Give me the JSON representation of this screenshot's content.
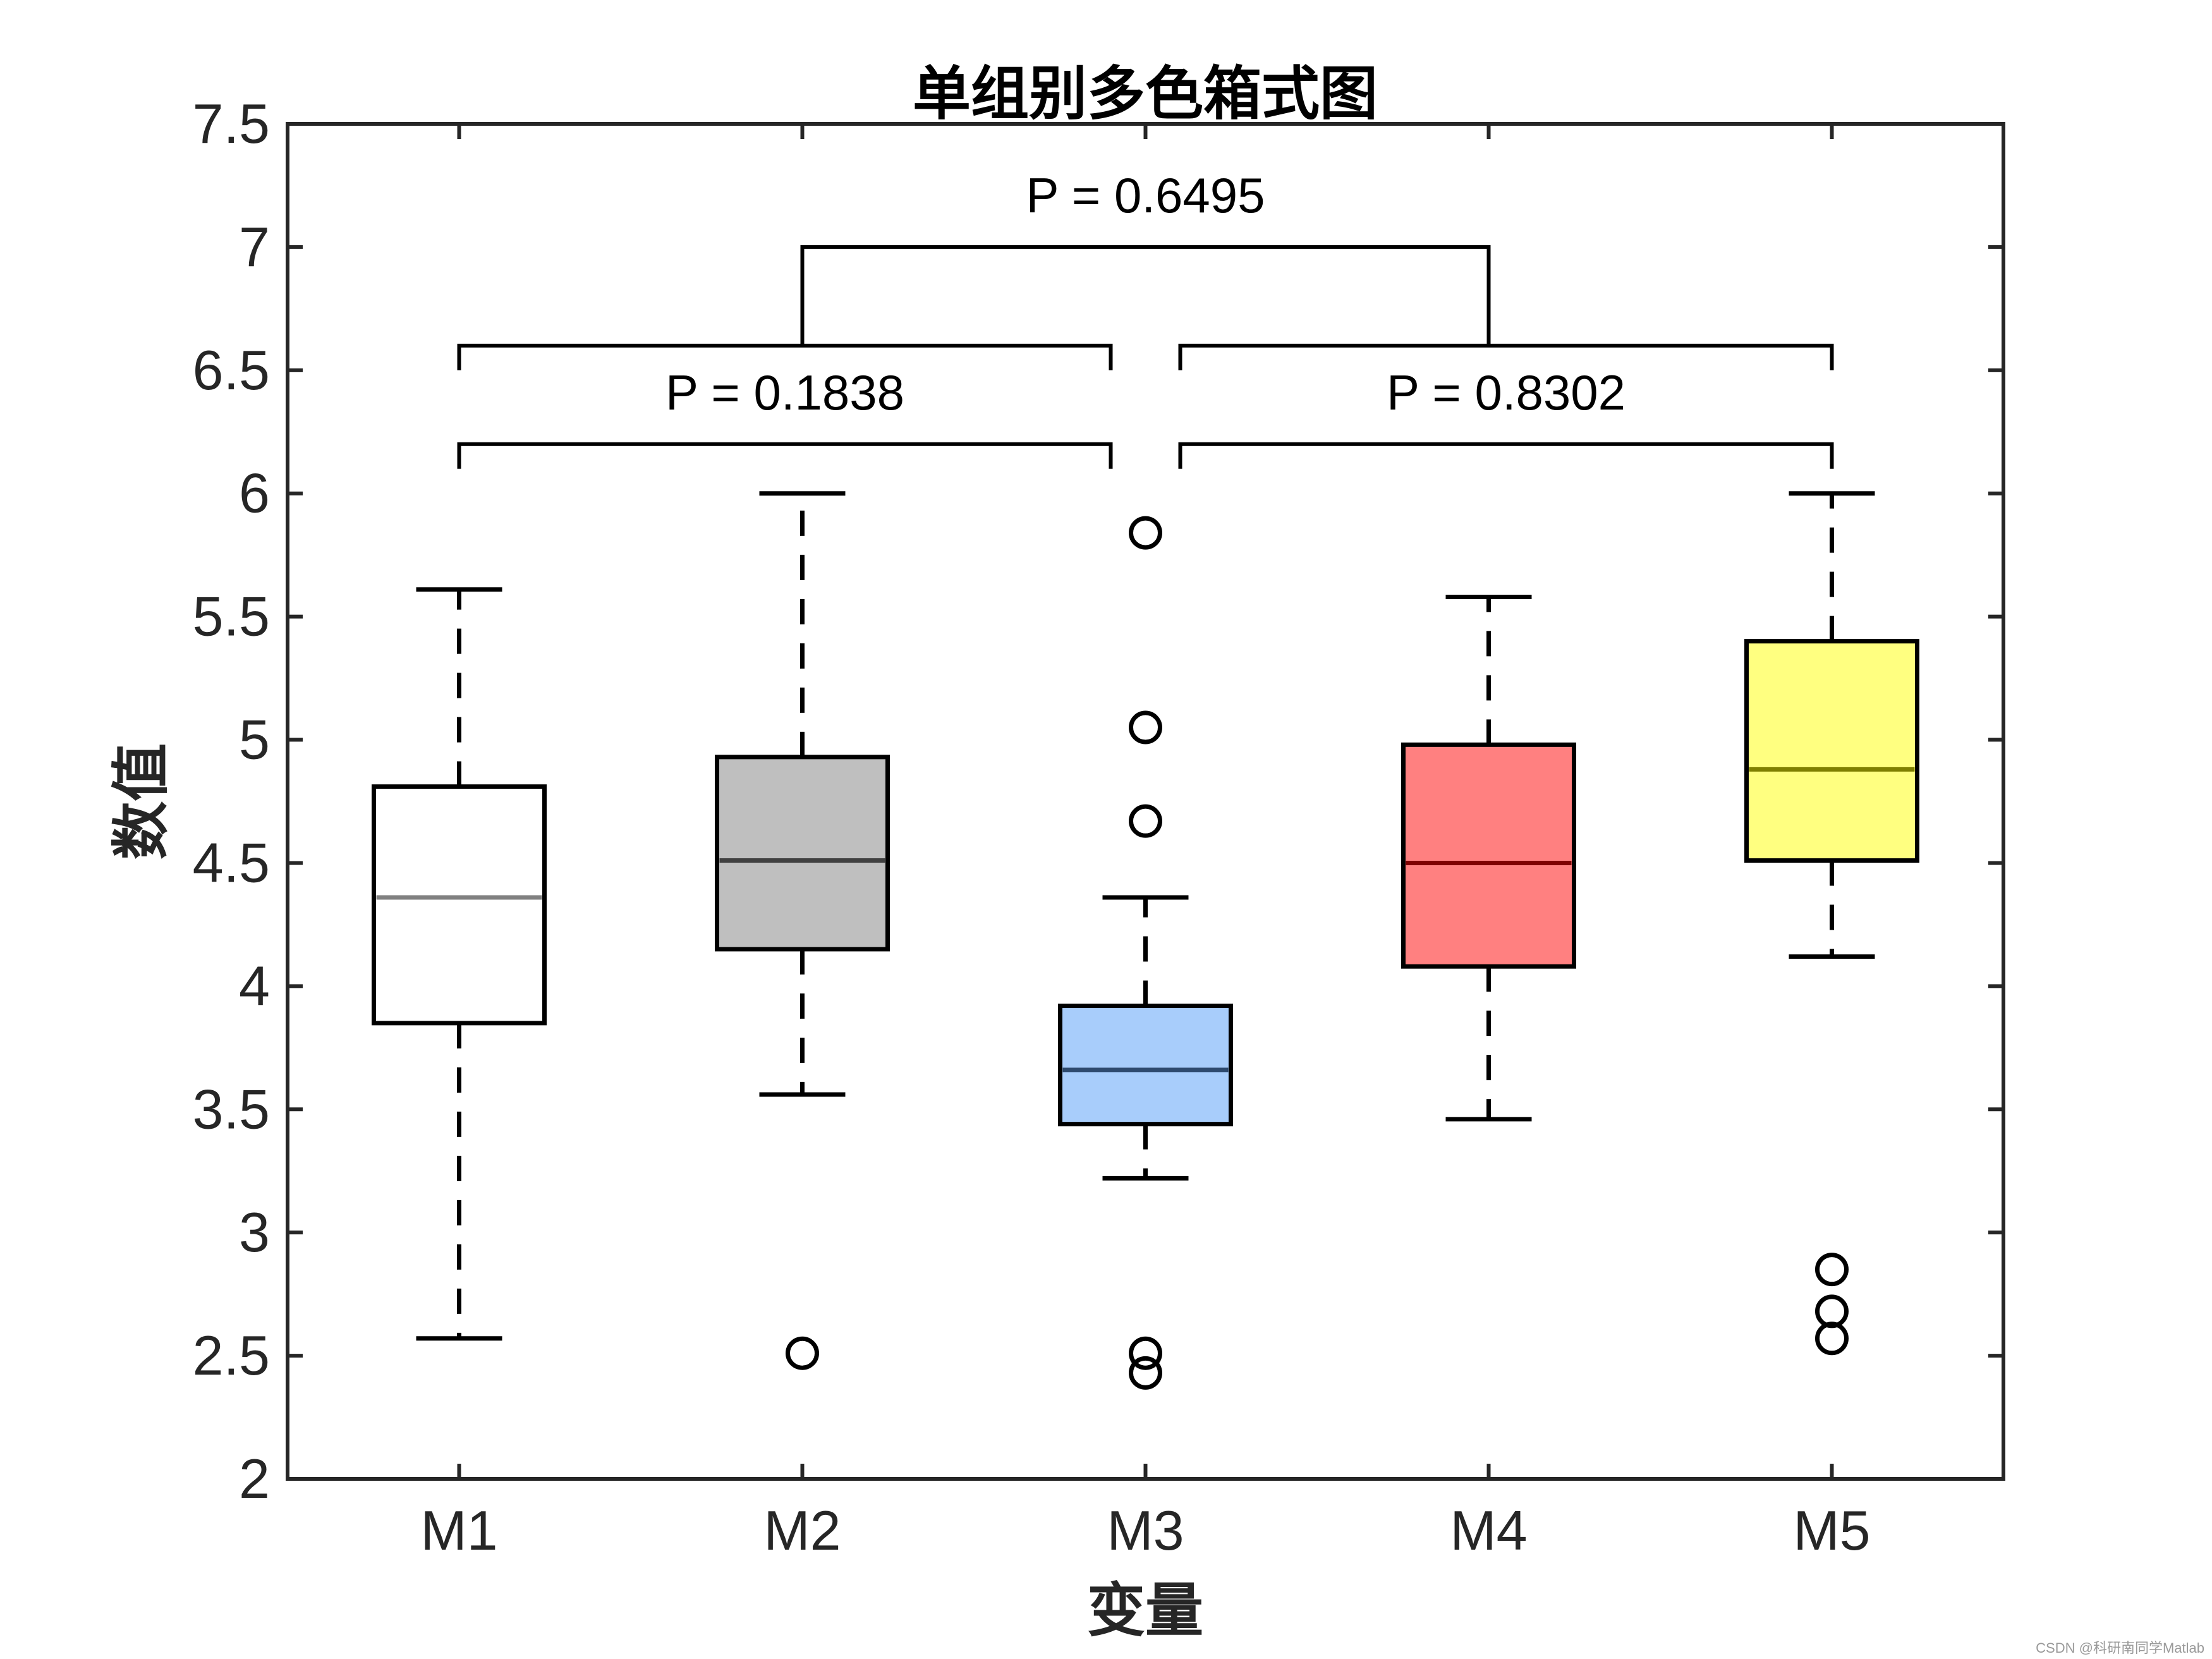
{
  "chart_data": {
    "type": "boxplot",
    "title": "单组别多色箱式图",
    "xlabel": "变量",
    "ylabel": "数值",
    "ylim": [
      2,
      7.5
    ],
    "yticks": [
      "2",
      "2.5",
      "3",
      "3.5",
      "4",
      "4.5",
      "5",
      "5.5",
      "6",
      "6.5",
      "7",
      "7.5"
    ],
    "categories": [
      "M1",
      "M2",
      "M3",
      "M4",
      "M5"
    ],
    "boxes": [
      {
        "category": "M1",
        "whisker_low": 2.57,
        "q1": 3.85,
        "median": 4.36,
        "q3": 4.81,
        "whisker_high": 5.61,
        "outliers": [],
        "fill": "#ffffff",
        "median_color": "#808080"
      },
      {
        "category": "M2",
        "whisker_low": 3.56,
        "q1": 4.15,
        "median": 4.51,
        "q3": 4.93,
        "whisker_high": 6.0,
        "outliers": [
          2.51
        ],
        "fill": "#bfbfbf",
        "median_color": "#404040"
      },
      {
        "category": "M3",
        "whisker_low": 3.22,
        "q1": 3.44,
        "median": 3.66,
        "q3": 3.92,
        "whisker_high": 4.36,
        "outliers": [
          5.84,
          5.05,
          4.67,
          2.51,
          2.43
        ],
        "fill": "#a8cdfb",
        "median_color": "#2e4a6e"
      },
      {
        "category": "M4",
        "whisker_low": 3.46,
        "q1": 4.08,
        "median": 4.5,
        "q3": 4.98,
        "whisker_high": 5.58,
        "outliers": [],
        "fill": "#ff8080",
        "median_color": "#7f0000"
      },
      {
        "category": "M5",
        "whisker_low": 4.12,
        "q1": 4.51,
        "median": 4.88,
        "q3": 5.4,
        "whisker_high": 6.0,
        "outliers": [
          2.85,
          2.68,
          2.57
        ],
        "fill": "#ffff80",
        "median_color": "#7f7f00"
      }
    ],
    "comparisons": [
      {
        "label": "P = 0.1838",
        "from": "M1",
        "to": "M3",
        "y": 6.2,
        "drop": 6.1
      },
      {
        "label": "P = 0.8302",
        "from": "M3",
        "to": "M5",
        "y": 6.2,
        "drop": 6.1
      },
      {
        "label": "P = 0.1838",
        "from": "M1",
        "to": "M3",
        "y": 6.6,
        "drop": 6.5,
        "hidden_label": true
      },
      {
        "label": "P = 0.8302",
        "from": "M3",
        "to": "M5",
        "y": 6.6,
        "drop": 6.5,
        "hidden_label": true
      },
      {
        "label": "P = 0.6495",
        "from": "M2",
        "to": "M4",
        "y": 7.0,
        "drop": 6.6
      }
    ],
    "grid": false
  },
  "watermark": "CSDN @科研南同学Matlab"
}
